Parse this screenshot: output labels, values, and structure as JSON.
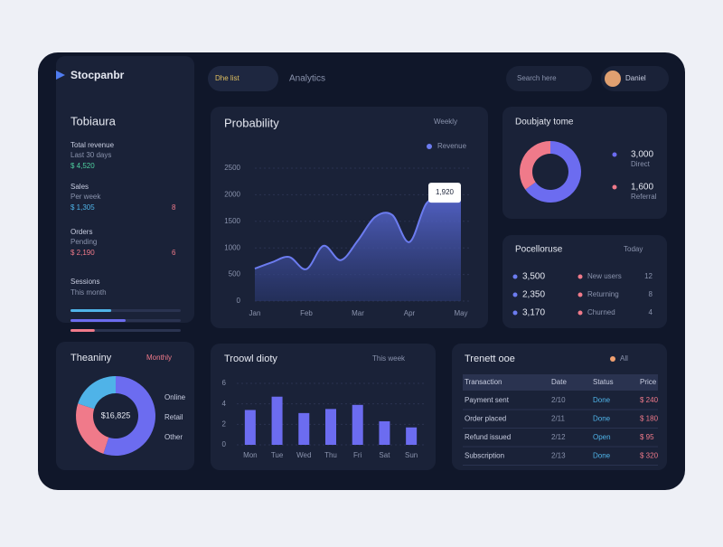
{
  "brand": "Stocpanbr",
  "topbar": {
    "search": "Dhe list",
    "tab": "Analytics",
    "search2": "Search here",
    "user": "Daniel"
  },
  "sidebar": {
    "title": "Tobiaura",
    "groups": [
      {
        "heading": "Total revenue",
        "sub": "Last 30 days",
        "value": "$ 4,520"
      },
      {
        "heading": "Sales",
        "sub": "Per week",
        "value": "$ 1,305",
        "badge": "8"
      },
      {
        "heading": "Orders",
        "sub": "Pending",
        "value": "$ 2,190",
        "badge": "6"
      }
    ],
    "progress": {
      "label": "Sessions",
      "sub": "This month",
      "xlim": [
        0,
        100
      ],
      "values": [
        37,
        50,
        22
      ],
      "colors": [
        "#4fb3e8",
        "#6c6cf0",
        "#f07a8a"
      ]
    }
  },
  "area_chart": {
    "type": "area",
    "title": "Probability",
    "filter": "Weekly",
    "legend": "Revenue",
    "tooltip": "1,920",
    "color": "#6c7cf0",
    "x": [
      0,
      1,
      2,
      3,
      4,
      5,
      6,
      7,
      8,
      9,
      10,
      11,
      12
    ],
    "values": [
      610,
      730,
      830,
      600,
      1040,
      770,
      1140,
      1580,
      1620,
      1110,
      1840,
      1920,
      1920
    ],
    "xlim": [
      0,
      12
    ],
    "xticks": [
      {
        "value": 0,
        "label": "Jan"
      },
      {
        "value": 3,
        "label": "Feb"
      },
      {
        "value": 6,
        "label": "Mar"
      },
      {
        "value": 9,
        "label": "Apr"
      },
      {
        "value": 12,
        "label": "May"
      }
    ],
    "ylim": [
      0,
      2500
    ],
    "yticks": [
      0,
      500,
      1000,
      1500,
      2000,
      2500
    ],
    "grid": true
  },
  "donut_top": {
    "type": "donut",
    "title": "Doubjaty tome",
    "categories": [
      "Direct",
      "Referral"
    ],
    "values": [
      3000,
      1600
    ],
    "value_labels": [
      "3,000",
      "1,600"
    ],
    "colors": [
      "#6c6cf0",
      "#f07a8a"
    ]
  },
  "list_panel": {
    "title": "Pocelloruse",
    "filter": "Today",
    "rows": [
      {
        "value": "3,500",
        "label": "New users",
        "change": "12"
      },
      {
        "value": "2,350",
        "label": "Returning",
        "change": "8"
      },
      {
        "value": "3,170",
        "label": "Churned",
        "change": "4"
      }
    ]
  },
  "donut_bottom": {
    "type": "donut",
    "title": "Theaniny",
    "filter": "Monthly",
    "center": "$16,825",
    "categories": [
      "Online",
      "Retail",
      "Other"
    ],
    "values": [
      55,
      25,
      20
    ],
    "colors": [
      "#6c6cf0",
      "#f07a8a",
      "#4fb3e8"
    ]
  },
  "bar_chart": {
    "type": "bar",
    "title": "Troowl dioty",
    "filter": "This week",
    "color": "#6c6cf0",
    "categories": [
      "Mon",
      "Tue",
      "Wed",
      "Thu",
      "Fri",
      "Sat",
      "Sun"
    ],
    "values": [
      3.4,
      4.7,
      3.1,
      3.5,
      3.9,
      2.3,
      1.7
    ],
    "ylim": [
      0,
      6
    ],
    "yticks": [
      0,
      2,
      4,
      6
    ],
    "grid": true
  },
  "table": {
    "title": "Trenett ooe",
    "filter": "All",
    "header": [
      "Transaction",
      "Date",
      "Status",
      "Price"
    ],
    "rows": [
      [
        "Payment sent",
        "2/10",
        "Done",
        "$ 240"
      ],
      [
        "Order placed",
        "2/11",
        "Done",
        "$ 180"
      ],
      [
        "Refund issued",
        "2/12",
        "Open",
        "$ 95"
      ],
      [
        "Subscription",
        "2/13",
        "Done",
        "$ 320"
      ]
    ]
  }
}
